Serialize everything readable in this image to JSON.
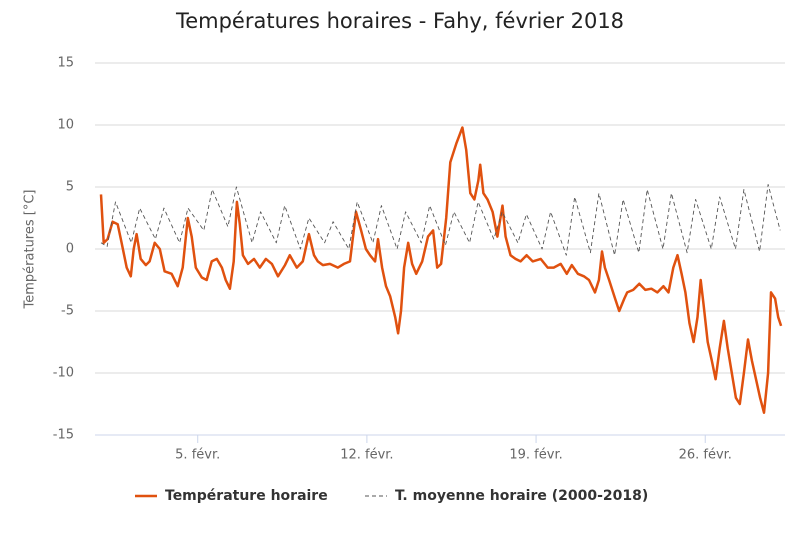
{
  "chart_data": {
    "type": "line",
    "title": "Températures horaires - Fahy, février 2018",
    "y_label": "Températures [°C]",
    "xlim": [
      0.75,
      29.3
    ],
    "xticks": [
      {
        "value": 5,
        "label": "5. févr."
      },
      {
        "value": 12,
        "label": "12. févr."
      },
      {
        "value": 19,
        "label": "19. févr."
      },
      {
        "value": 26,
        "label": "26. févr."
      }
    ],
    "ylim": [
      -15,
      15
    ],
    "yticks": [
      -15,
      -10,
      -5,
      0,
      5,
      10,
      15
    ],
    "yticks_labels_note_free": true,
    "grid": true,
    "legend": "bottom",
    "series": [
      {
        "name": "Température horaire",
        "color": "#e0510f",
        "dash": false,
        "x": [
          1.0,
          1.11,
          1.27,
          1.48,
          1.69,
          1.85,
          2.06,
          2.23,
          2.35,
          2.47,
          2.64,
          2.85,
          3.01,
          3.22,
          3.43,
          3.63,
          3.92,
          4.17,
          4.38,
          4.59,
          4.75,
          4.92,
          5.17,
          5.37,
          5.58,
          5.79,
          6.0,
          6.16,
          6.33,
          6.49,
          6.62,
          6.74,
          6.87,
          7.08,
          7.33,
          7.57,
          7.82,
          8.07,
          8.32,
          8.61,
          8.81,
          9.1,
          9.35,
          9.6,
          9.81,
          9.97,
          10.18,
          10.47,
          10.8,
          11.05,
          11.3,
          11.55,
          11.76,
          11.96,
          12.13,
          12.34,
          12.46,
          12.63,
          12.79,
          12.96,
          13.17,
          13.29,
          13.41,
          13.54,
          13.71,
          13.87,
          14.04,
          14.29,
          14.53,
          14.74,
          14.91,
          15.07,
          15.28,
          15.45,
          15.7,
          15.95,
          16.11,
          16.28,
          16.45,
          16.61,
          16.69,
          16.82,
          16.99,
          17.2,
          17.4,
          17.61,
          17.74,
          17.94,
          18.15,
          18.36,
          18.61,
          18.86,
          19.19,
          19.48,
          19.73,
          20.02,
          20.27,
          20.48,
          20.73,
          20.98,
          21.19,
          21.44,
          21.6,
          21.73,
          21.85,
          22.02,
          22.27,
          22.44,
          22.65,
          22.77,
          23.02,
          23.27,
          23.52,
          23.77,
          24.02,
          24.27,
          24.48,
          24.68,
          24.85,
          25.02,
          25.18,
          25.35,
          25.52,
          25.68,
          25.81,
          25.93,
          26.1,
          26.27,
          26.43,
          26.6,
          26.77,
          26.93,
          27.1,
          27.27,
          27.43,
          27.6,
          27.77,
          27.93,
          28.1,
          28.27,
          28.43,
          28.6,
          28.72,
          28.89,
          29.02,
          29.14
        ],
        "values": [
          4.4,
          0.5,
          0.8,
          2.2,
          2.0,
          0.5,
          -1.5,
          -2.2,
          0,
          1.2,
          -0.8,
          -1.3,
          -1.0,
          0.5,
          0,
          -1.8,
          -2.0,
          -3.0,
          -1.5,
          2.5,
          1.0,
          -1.5,
          -2.3,
          -2.5,
          -1.0,
          -0.8,
          -1.5,
          -2.5,
          -3.2,
          -1.0,
          3.8,
          2.0,
          -0.5,
          -1.2,
          -0.8,
          -1.5,
          -0.8,
          -1.2,
          -2.2,
          -1.3,
          -0.5,
          -1.5,
          -1.0,
          1.2,
          -0.5,
          -1.0,
          -1.3,
          -1.2,
          -1.5,
          -1.2,
          -1.0,
          3.0,
          1.5,
          0,
          -0.5,
          -1.0,
          0.8,
          -1.5,
          -3.0,
          -3.8,
          -5.5,
          -6.8,
          -5.0,
          -1.5,
          0.5,
          -1.2,
          -2.0,
          -1.0,
          1.0,
          1.5,
          -1.5,
          -1.2,
          2.5,
          7.0,
          8.5,
          9.8,
          8.0,
          4.5,
          4.0,
          5.5,
          6.8,
          4.5,
          4.0,
          3.0,
          1.0,
          3.5,
          1.0,
          -0.5,
          -0.8,
          -1.0,
          -0.5,
          -1.0,
          -0.8,
          -1.5,
          -1.5,
          -1.2,
          -2.0,
          -1.3,
          -2.0,
          -2.2,
          -2.5,
          -3.5,
          -2.5,
          -0.2,
          -1.5,
          -2.5,
          -4.0,
          -5.0,
          -4.0,
          -3.5,
          -3.3,
          -2.8,
          -3.3,
          -3.2,
          -3.5,
          -3.0,
          -3.5,
          -1.5,
          -0.5,
          -2.0,
          -3.5,
          -6.0,
          -7.5,
          -5.5,
          -2.5,
          -4.5,
          -7.5,
          -9.0,
          -10.5,
          -8.0,
          -5.8,
          -8.0,
          -10.0,
          -12.0,
          -12.5,
          -10.0,
          -7.3,
          -9.0,
          -10.5,
          -12.0,
          -13.2,
          -10.0,
          -3.5,
          -4.0,
          -5.5,
          -6.2
        ]
      },
      {
        "name": "T. moyenne horaire (2000-2018)",
        "color": "#555555",
        "dash": true,
        "x": [
          1.0,
          1.25,
          1.6,
          2.25,
          2.6,
          3.25,
          3.6,
          4.25,
          4.6,
          5.25,
          5.6,
          6.25,
          6.6,
          7.25,
          7.6,
          8.25,
          8.6,
          9.25,
          9.6,
          10.25,
          10.6,
          11.25,
          11.6,
          12.25,
          12.6,
          13.25,
          13.6,
          14.25,
          14.6,
          15.25,
          15.6,
          16.25,
          16.6,
          17.25,
          17.6,
          18.25,
          18.6,
          19.25,
          19.6,
          20.25,
          20.6,
          21.25,
          21.6,
          22.25,
          22.6,
          23.25,
          23.6,
          24.25,
          24.6,
          25.25,
          25.6,
          26.25,
          26.6,
          27.25,
          27.6,
          28.25,
          28.6,
          29.1
        ],
        "values": [
          0.5,
          0.2,
          3.8,
          0.5,
          3.3,
          0.8,
          3.3,
          0.5,
          3.3,
          1.5,
          4.8,
          1.8,
          5.0,
          0.5,
          3.0,
          0.5,
          3.5,
          0,
          2.5,
          0.5,
          2.2,
          0,
          3.8,
          0.5,
          3.5,
          0,
          3.0,
          0.5,
          3.5,
          0.3,
          3.0,
          0.5,
          3.8,
          0.8,
          3.0,
          0.5,
          2.8,
          0,
          3.0,
          -0.5,
          4.2,
          -0.3,
          4.5,
          -0.5,
          4.0,
          -0.3,
          4.8,
          0,
          4.5,
          -0.3,
          4.0,
          0,
          4.2,
          0,
          4.8,
          -0.2,
          5.2,
          1.5
        ]
      }
    ]
  }
}
